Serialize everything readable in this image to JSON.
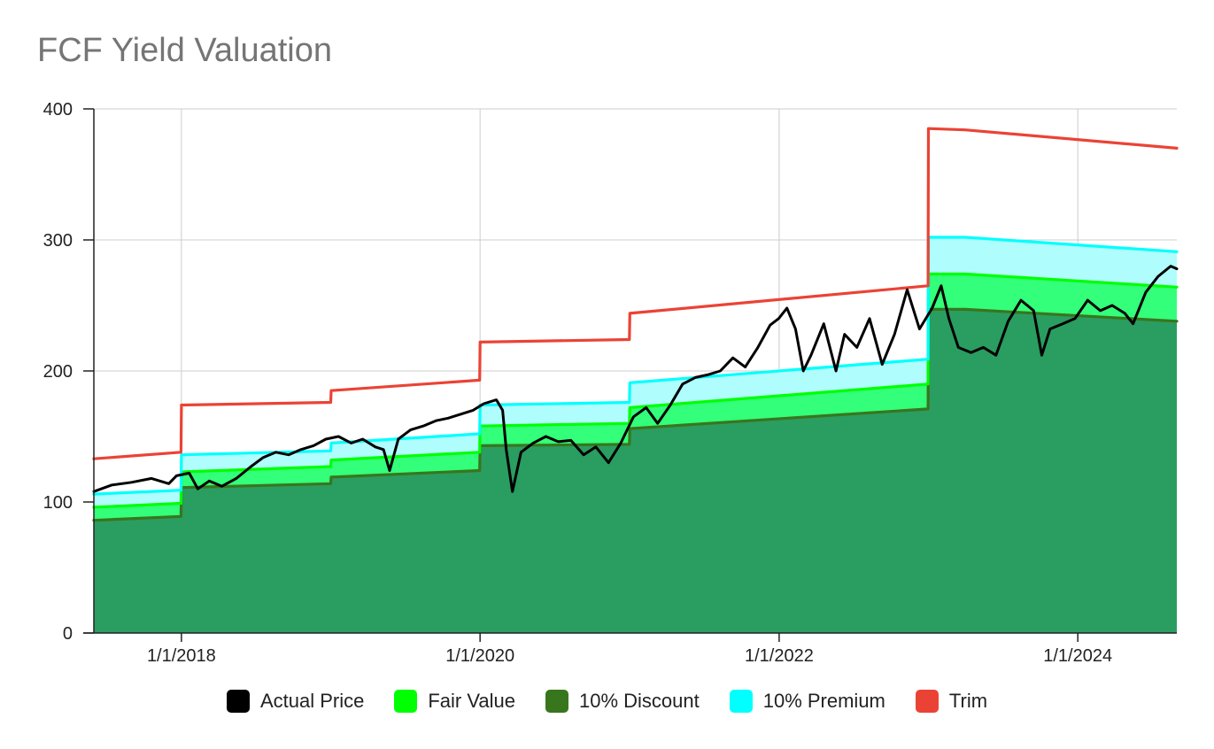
{
  "chart_data": {
    "type": "area",
    "title": "FCF Yield Valuation",
    "xlabel": "",
    "ylabel": "",
    "ylim": [
      0,
      400
    ],
    "yticks": [
      0,
      100,
      200,
      300,
      400
    ],
    "xlim": [
      "2017-06-01",
      "2024-08-30"
    ],
    "xticks": [
      {
        "date": "2018-01-01",
        "label": "1/1/2018"
      },
      {
        "date": "2020-01-01",
        "label": "1/1/2020"
      },
      {
        "date": "2022-01-01",
        "label": "1/1/2022"
      },
      {
        "date": "2024-01-01",
        "label": "1/1/2024"
      }
    ],
    "grid": true,
    "legend_position": "bottom",
    "series": [
      {
        "name": "Actual Price",
        "color": "#000000",
        "kind": "line",
        "points": [
          [
            "2017-06-01",
            108
          ],
          [
            "2017-07-15",
            113
          ],
          [
            "2017-09-01",
            115
          ],
          [
            "2017-10-20",
            118
          ],
          [
            "2017-12-01",
            114
          ],
          [
            "2017-12-20",
            120
          ],
          [
            "2018-01-20",
            122
          ],
          [
            "2018-02-10",
            110
          ],
          [
            "2018-03-10",
            116
          ],
          [
            "2018-04-10",
            112
          ],
          [
            "2018-05-15",
            118
          ],
          [
            "2018-06-20",
            127
          ],
          [
            "2018-07-20",
            134
          ],
          [
            "2018-08-20",
            138
          ],
          [
            "2018-09-20",
            136
          ],
          [
            "2018-10-20",
            140
          ],
          [
            "2018-11-20",
            143
          ],
          [
            "2018-12-20",
            148
          ],
          [
            "2019-01-20",
            150
          ],
          [
            "2019-02-20",
            145
          ],
          [
            "2019-03-20",
            148
          ],
          [
            "2019-04-20",
            142
          ],
          [
            "2019-05-10",
            140
          ],
          [
            "2019-05-25",
            124
          ],
          [
            "2019-06-15",
            148
          ],
          [
            "2019-07-15",
            155
          ],
          [
            "2019-08-15",
            158
          ],
          [
            "2019-09-15",
            162
          ],
          [
            "2019-10-15",
            164
          ],
          [
            "2019-11-15",
            167
          ],
          [
            "2019-12-15",
            170
          ],
          [
            "2020-01-10",
            175
          ],
          [
            "2020-02-10",
            178
          ],
          [
            "2020-02-25",
            170
          ],
          [
            "2020-03-05",
            140
          ],
          [
            "2020-03-20",
            108
          ],
          [
            "2020-04-10",
            138
          ],
          [
            "2020-05-10",
            145
          ],
          [
            "2020-06-10",
            150
          ],
          [
            "2020-07-10",
            146
          ],
          [
            "2020-08-10",
            147
          ],
          [
            "2020-09-10",
            136
          ],
          [
            "2020-10-10",
            142
          ],
          [
            "2020-11-10",
            130
          ],
          [
            "2020-12-10",
            145
          ],
          [
            "2021-01-10",
            165
          ],
          [
            "2021-02-10",
            172
          ],
          [
            "2021-03-10",
            160
          ],
          [
            "2021-04-10",
            174
          ],
          [
            "2021-05-10",
            190
          ],
          [
            "2021-06-10",
            195
          ],
          [
            "2021-07-10",
            197
          ],
          [
            "2021-08-10",
            200
          ],
          [
            "2021-09-10",
            210
          ],
          [
            "2021-10-10",
            203
          ],
          [
            "2021-11-10",
            218
          ],
          [
            "2021-12-10",
            235
          ],
          [
            "2021-12-31",
            240
          ],
          [
            "2022-01-20",
            248
          ],
          [
            "2022-02-10",
            232
          ],
          [
            "2022-03-01",
            200
          ],
          [
            "2022-03-20",
            212
          ],
          [
            "2022-04-20",
            236
          ],
          [
            "2022-05-20",
            200
          ],
          [
            "2022-06-10",
            228
          ],
          [
            "2022-07-10",
            218
          ],
          [
            "2022-08-10",
            240
          ],
          [
            "2022-09-10",
            205
          ],
          [
            "2022-10-10",
            228
          ],
          [
            "2022-11-10",
            262
          ],
          [
            "2022-12-10",
            232
          ],
          [
            "2023-01-10",
            248
          ],
          [
            "2023-02-01",
            265
          ],
          [
            "2023-02-20",
            240
          ],
          [
            "2023-03-15",
            218
          ],
          [
            "2023-04-15",
            214
          ],
          [
            "2023-05-15",
            218
          ],
          [
            "2023-06-15",
            212
          ],
          [
            "2023-07-15",
            238
          ],
          [
            "2023-08-15",
            254
          ],
          [
            "2023-09-15",
            246
          ],
          [
            "2023-10-05",
            212
          ],
          [
            "2023-10-25",
            232
          ],
          [
            "2023-11-25",
            236
          ],
          [
            "2023-12-25",
            240
          ],
          [
            "2024-01-25",
            254
          ],
          [
            "2024-02-25",
            246
          ],
          [
            "2024-03-25",
            250
          ],
          [
            "2024-04-25",
            244
          ],
          [
            "2024-05-15",
            236
          ],
          [
            "2024-06-15",
            260
          ],
          [
            "2024-07-15",
            272
          ],
          [
            "2024-08-15",
            280
          ],
          [
            "2024-08-30",
            278
          ]
        ]
      },
      {
        "name": "Fair Value",
        "color": "#00ff00",
        "kind": "area",
        "points": [
          [
            "2017-06-01",
            96
          ],
          [
            "2017-12-31",
            99
          ],
          [
            "2018-01-01",
            123
          ],
          [
            "2019-01-01",
            127
          ],
          [
            "2019-01-02",
            132
          ],
          [
            "2019-12-31",
            138
          ],
          [
            "2020-01-01",
            158
          ],
          [
            "2020-12-31",
            160
          ],
          [
            "2021-01-01",
            172
          ],
          [
            "2022-12-31",
            190
          ],
          [
            "2023-01-01",
            274
          ],
          [
            "2023-04-01",
            274
          ],
          [
            "2024-08-30",
            264
          ]
        ]
      },
      {
        "name": "10% Discount",
        "color": "#38761d",
        "kind": "area",
        "points": [
          [
            "2017-06-01",
            86
          ],
          [
            "2017-12-31",
            89
          ],
          [
            "2018-01-01",
            111
          ],
          [
            "2019-01-01",
            114
          ],
          [
            "2019-01-02",
            119
          ],
          [
            "2019-12-31",
            124
          ],
          [
            "2020-01-01",
            143
          ],
          [
            "2020-12-31",
            144
          ],
          [
            "2021-01-01",
            156
          ],
          [
            "2022-12-31",
            171
          ],
          [
            "2023-01-01",
            247
          ],
          [
            "2023-04-01",
            247
          ],
          [
            "2024-08-30",
            238
          ]
        ]
      },
      {
        "name": "10% Premium",
        "color": "#00ffff",
        "kind": "area",
        "points": [
          [
            "2017-06-01",
            106
          ],
          [
            "2017-12-31",
            109
          ],
          [
            "2018-01-01",
            136
          ],
          [
            "2019-01-01",
            139
          ],
          [
            "2019-01-02",
            145
          ],
          [
            "2019-12-31",
            152
          ],
          [
            "2020-01-01",
            174
          ],
          [
            "2020-12-31",
            176
          ],
          [
            "2021-01-01",
            191
          ],
          [
            "2022-12-31",
            209
          ],
          [
            "2023-01-01",
            302
          ],
          [
            "2023-04-01",
            302
          ],
          [
            "2024-08-30",
            291
          ]
        ]
      },
      {
        "name": "Trim",
        "color": "#ea4335",
        "kind": "line",
        "points": [
          [
            "2017-06-01",
            133
          ],
          [
            "2017-12-31",
            138
          ],
          [
            "2018-01-01",
            174
          ],
          [
            "2019-01-01",
            176
          ],
          [
            "2019-01-02",
            185
          ],
          [
            "2019-12-31",
            193
          ],
          [
            "2020-01-01",
            222
          ],
          [
            "2020-12-31",
            224
          ],
          [
            "2021-01-01",
            244
          ],
          [
            "2022-12-31",
            265
          ],
          [
            "2023-01-01",
            385
          ],
          [
            "2023-04-01",
            384
          ],
          [
            "2024-08-30",
            370
          ]
        ]
      }
    ],
    "fill_colors": {
      "discount_band": "#2a9d61",
      "fair_band": "#33ff7a",
      "premium_band": "#b0fdfd"
    }
  }
}
